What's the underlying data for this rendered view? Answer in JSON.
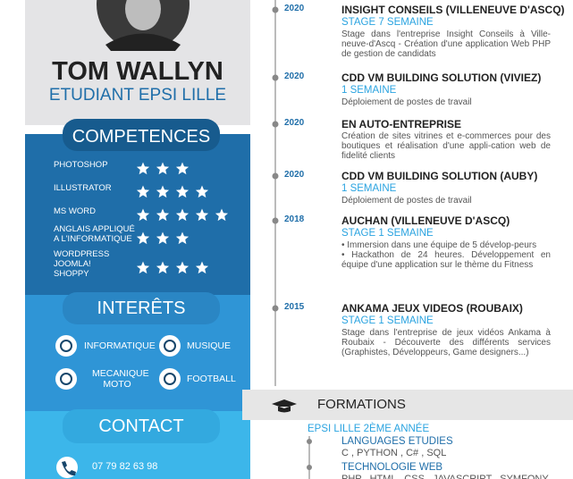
{
  "profile": {
    "name": "TOM WALLYN",
    "subtitle": "ETUDIANT EPSI LILLE"
  },
  "skills": {
    "title": "COMPETENCES",
    "items": [
      {
        "lines": [
          "PHOTOSHOP"
        ],
        "stars": 3
      },
      {
        "lines": [
          "ILLUSTRATOR"
        ],
        "stars": 4
      },
      {
        "lines": [
          "MS WORD"
        ],
        "stars": 5
      },
      {
        "lines": [
          "ANGLAIS APPLIQUÉ",
          "A L'INFORMATIQUE"
        ],
        "stars": 3
      },
      {
        "lines": [
          "WORDPRESS",
          "JOOMLA!",
          "SHOPPY"
        ],
        "stars": 4
      }
    ]
  },
  "interests": {
    "title": "INTERÊTS",
    "items": [
      {
        "lines": [
          "INFORMATIQUE"
        ]
      },
      {
        "lines": [
          "MUSIQUE"
        ]
      },
      {
        "lines": [
          "MECANIQUE",
          "MOTO"
        ]
      },
      {
        "lines": [
          "FOOTBALL"
        ]
      }
    ]
  },
  "contact": {
    "title": "CONTACT",
    "phone": "07 79 82 63 98"
  },
  "experience": [
    {
      "year": "2020",
      "title": "INSIGHT CONSEILS (VILLENEUVE D'ASCQ)",
      "subtitle": "STAGE 7 SEMAINE",
      "description": [
        "Stage dans l'entreprise Insight Conseils à Ville-neuve-d'Ascq - Création d'une application Web PHP de gestion de candidats"
      ]
    },
    {
      "year": "2020",
      "title": "CDD VM BUILDING SOLUTION (VIVIEZ)",
      "subtitle": "1 SEMAINE",
      "description": [
        "Déploiement de postes de travail"
      ]
    },
    {
      "year": "2020",
      "title": "EN AUTO-ENTREPRISE",
      "description": [
        "Création de sites vitrines et e-commerces pour des boutiques et réalisation d'une appli-cation web de fidelité clients"
      ]
    },
    {
      "year": "2020",
      "title": "CDD VM BUILDING SOLUTION (AUBY)",
      "subtitle": "1 SEMAINE",
      "description": [
        "Déploiement de postes de travail"
      ]
    },
    {
      "year": "2018",
      "title": "AUCHAN (VILLENEUVE D'ASCQ)",
      "subtitle": "STAGE 1 SEMAINE",
      "description": [
        "• Immersion dans une équipe de 5 dévelop-peurs",
        "• Hackathon de 24 heures. Développement en équipe d'une application sur le thème du Fitness"
      ]
    },
    {
      "year": "2015",
      "title": "ANKAMA JEUX VIDEOS (ROUBAIX)",
      "subtitle": "STAGE 1 SEMAINE",
      "description": [
        "Stage dans l'entreprise de jeux vidéos Ankama à Roubaix - Découverte des différents services (Graphistes, Développeurs, Game designers...)"
      ]
    }
  ],
  "formations": {
    "title": "FORMATIONS",
    "school": "EPSI LILLE 2ÈME ANNÉE",
    "items": [
      {
        "title": "LANGUAGES ETUDIES",
        "text": "C , PYTHON , C# , SQL"
      },
      {
        "title": "TECHNOLOGIE WEB",
        "text": "PHP , HTML , CSS , JAVASCRIPT , SYMFONY"
      }
    ]
  }
}
